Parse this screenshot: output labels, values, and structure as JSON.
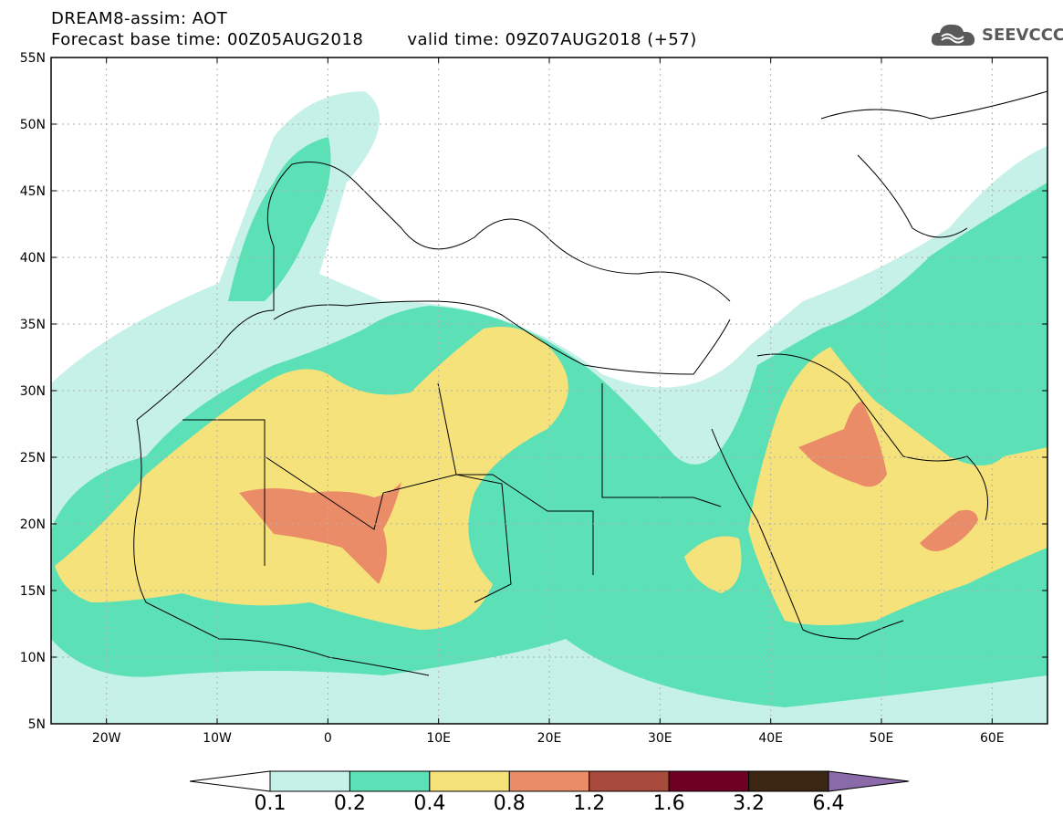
{
  "header": {
    "line1": "DREAM8-assim: AOT",
    "base_time": "Forecast base time: 00Z05AUG2018",
    "valid_time": "valid time: 09Z07AUG2018 (+57)"
  },
  "logo": {
    "text": "SEEVCCC",
    "icon": "cloud-icon"
  },
  "map": {
    "lon_range": [
      -25,
      65
    ],
    "lat_range": [
      5,
      55
    ],
    "lat_ticks": [
      "5N",
      "10N",
      "15N",
      "20N",
      "25N",
      "30N",
      "35N",
      "40N",
      "45N",
      "50N",
      "55N"
    ],
    "lon_ticks": [
      "20W",
      "10W",
      "0",
      "10E",
      "20E",
      "30E",
      "40E",
      "50E",
      "60E"
    ],
    "grid": true
  },
  "colorbar": {
    "labels": [
      "0.1",
      "0.2",
      "0.4",
      "0.8",
      "1.2",
      "1.6",
      "3.2",
      "6.4"
    ],
    "colors": [
      "#ffffff",
      "#c6f1e8",
      "#5ce0b6",
      "#f6e27a",
      "#ea8c68",
      "#a84a3c",
      "#6e0022",
      "#3b2614",
      "#8a6aa8"
    ]
  }
}
